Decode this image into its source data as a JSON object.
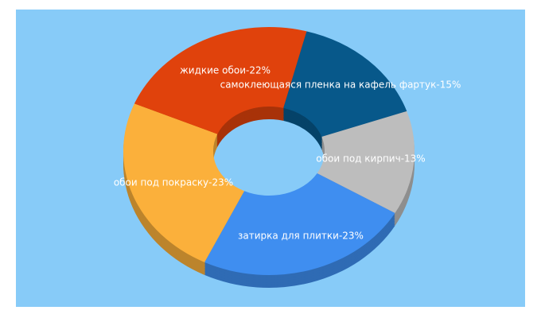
{
  "chart_data": {
    "type": "pie",
    "donut": true,
    "three_d": true,
    "value_labels": [
      "самоклеющаяся пленка на кафель фартук-15%",
      "обои под кирпич-13%",
      "затирка для плитки-23%",
      "обои под покраску-23%",
      "жидкие обои-22%"
    ],
    "values": [
      15,
      13,
      23,
      23,
      22
    ],
    "colors": [
      "#07588a",
      "#bdbdbd",
      "#3f8ef0",
      "#fbb03b",
      "#e0420c"
    ]
  }
}
